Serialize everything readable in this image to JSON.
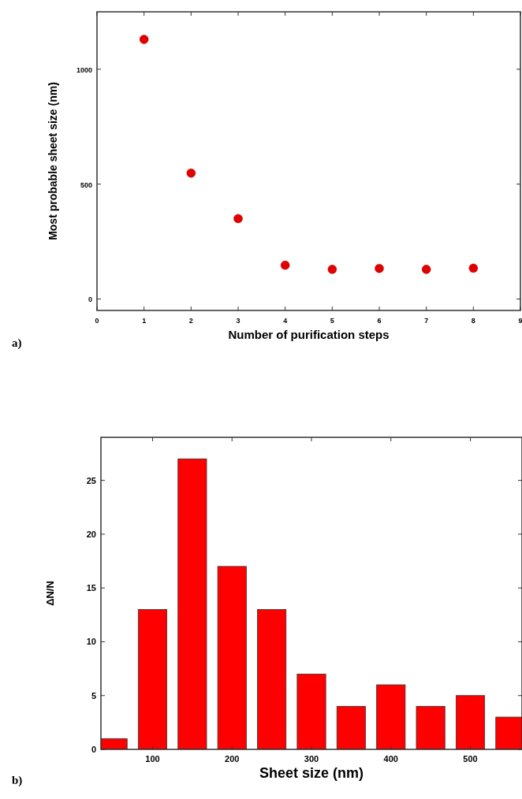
{
  "chart_data": [
    {
      "type": "scatter",
      "xlabel": "Number of purification steps",
      "ylabel": "Most probable sheet size (nm)",
      "x": [
        1,
        2,
        3,
        4,
        5,
        6,
        7,
        8
      ],
      "values": [
        1130,
        548,
        350,
        147,
        129,
        133,
        129,
        134
      ],
      "color": "#e00000",
      "marker": "circle",
      "xlim": [
        0,
        9
      ],
      "xticks": [
        0,
        1,
        2,
        3,
        4,
        5,
        6,
        7,
        8,
        9
      ],
      "ylim": [
        -50,
        1250
      ],
      "yticks": [
        0,
        500,
        1000
      ],
      "annotations": [
        "a)"
      ]
    },
    {
      "type": "bar",
      "xlabel": "Sheet size (nm)",
      "ylabel": "ΔN/N",
      "x": [
        50,
        100,
        150,
        200,
        250,
        300,
        350,
        400,
        450,
        500,
        550
      ],
      "values": [
        1,
        13,
        27,
        17,
        13,
        7,
        4,
        6,
        4,
        5,
        3
      ],
      "color": "#ff0000",
      "xlim": [
        35,
        565
      ],
      "xticks": [
        100,
        200,
        300,
        400,
        500
      ],
      "ylim": [
        0,
        29
      ],
      "yticks": [
        0,
        5,
        10,
        15,
        20,
        25
      ],
      "annotations": [
        "b)"
      ]
    }
  ]
}
